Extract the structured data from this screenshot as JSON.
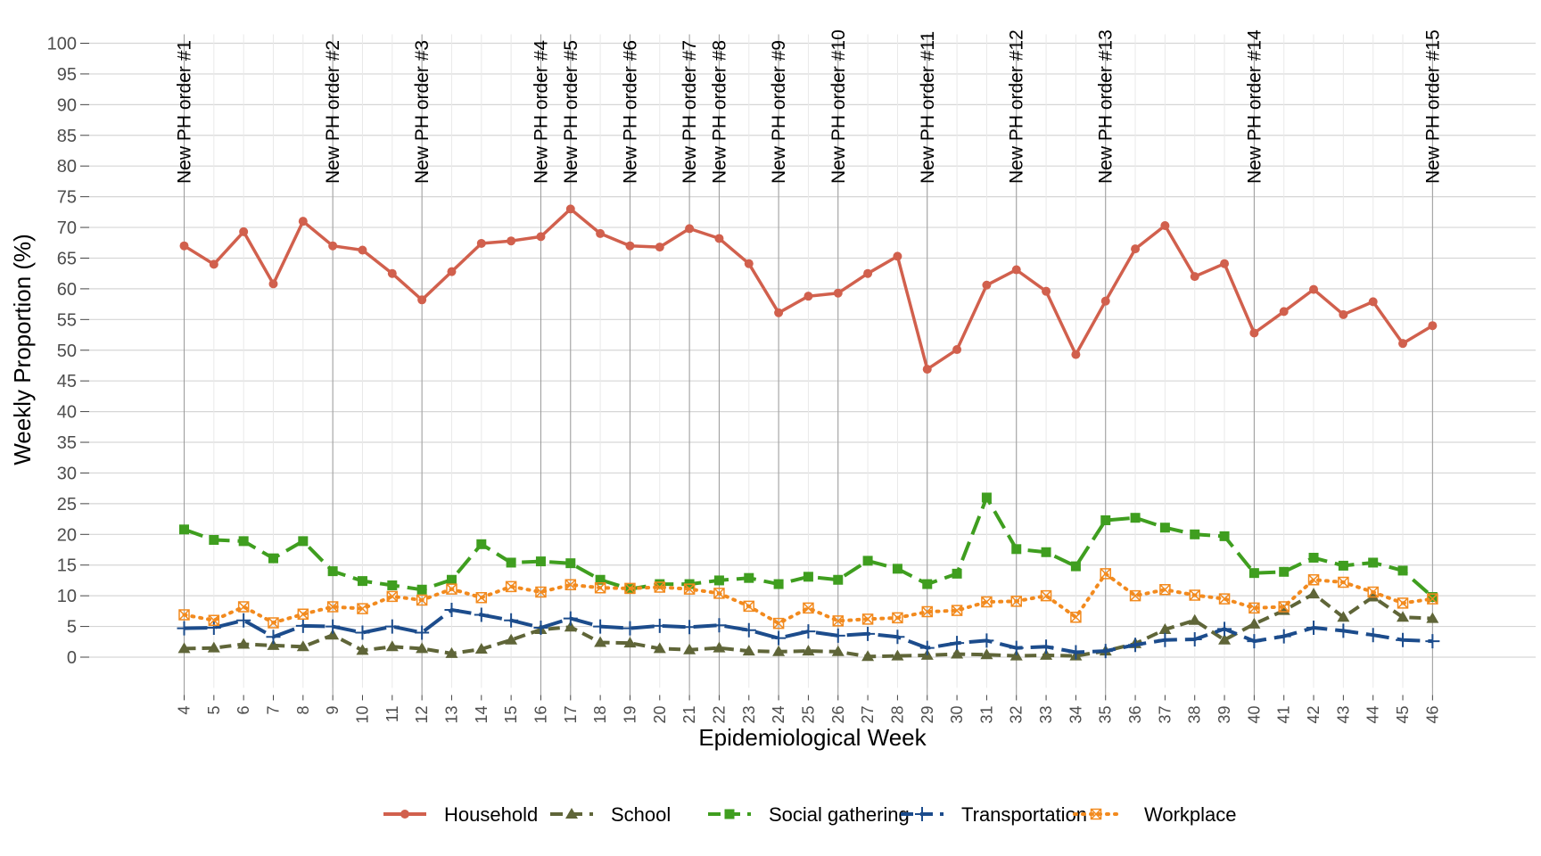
{
  "chart_data": {
    "type": "line",
    "xlabel": "Epidemiological Week",
    "ylabel": "Weekly Proportion (%)",
    "ylim": [
      -5,
      100
    ],
    "yticks": [
      0,
      5,
      10,
      15,
      20,
      25,
      30,
      35,
      40,
      45,
      50,
      55,
      60,
      65,
      70,
      75,
      80,
      85,
      90,
      95,
      100
    ],
    "grid": true,
    "legend_position": "bottom",
    "x": [
      4,
      5,
      6,
      7,
      8,
      9,
      10,
      11,
      12,
      13,
      14,
      15,
      16,
      17,
      18,
      19,
      20,
      21,
      22,
      23,
      24,
      25,
      26,
      27,
      28,
      29,
      30,
      31,
      32,
      33,
      34,
      35,
      36,
      37,
      38,
      39,
      40,
      41,
      42,
      43,
      44,
      45,
      46
    ],
    "annotations": [
      {
        "week": 4,
        "label": "New PH order #1"
      },
      {
        "week": 9,
        "label": "New PH order #2"
      },
      {
        "week": 12,
        "label": "New PH order #3"
      },
      {
        "week": 16,
        "label": "New PH order #4"
      },
      {
        "week": 17,
        "label": "New PH order #5"
      },
      {
        "week": 19,
        "label": "New PH order #6"
      },
      {
        "week": 21,
        "label": "New PH order #7"
      },
      {
        "week": 22,
        "label": "New PH order #8"
      },
      {
        "week": 24,
        "label": "New PH order #9"
      },
      {
        "week": 26,
        "label": "New PH order #10"
      },
      {
        "week": 29,
        "label": "New PH order #11"
      },
      {
        "week": 32,
        "label": "New PH order #12"
      },
      {
        "week": 35,
        "label": "New PH order #13"
      },
      {
        "week": 40,
        "label": "New PH order #14"
      },
      {
        "week": 46,
        "label": "New PH order #15"
      }
    ],
    "series": [
      {
        "name": "Household",
        "color": "#D1604D",
        "dash": "",
        "marker": "circle",
        "values": [
          67,
          64,
          69.3,
          60.8,
          71,
          67,
          66.3,
          62.5,
          58.2,
          62.8,
          67.4,
          67.8,
          68.5,
          73,
          69,
          67,
          66.8,
          69.8,
          68.2,
          64.1,
          56.1,
          58.8,
          59.3,
          62.5,
          65.3,
          46.9,
          50.1,
          60.6,
          63.1,
          59.6,
          49.3,
          58,
          66.5,
          70.3,
          62,
          64.1,
          52.8,
          56.3,
          59.9,
          55.8,
          57.9,
          51.1,
          54
        ]
      },
      {
        "name": "School",
        "color": "#5F6538",
        "dash": "13,7",
        "marker": "triangle",
        "values": [
          1.4,
          1.5,
          2.1,
          1.9,
          1.7,
          3.6,
          1.1,
          1.7,
          1.4,
          0.6,
          1.3,
          2.8,
          4.5,
          4.9,
          2.4,
          2.3,
          1.4,
          1.2,
          1.5,
          1.0,
          0.9,
          1.0,
          0.9,
          0.1,
          0.2,
          0.3,
          0.5,
          0.4,
          0.2,
          0.3,
          0.2,
          1.0,
          2.2,
          4.5,
          6.0,
          2.8,
          5.4,
          7.6,
          10.3,
          6.5,
          9.8,
          6.5,
          6.3
        ]
      },
      {
        "name": "Social gathering",
        "color": "#3F9E1F",
        "dash": "22,9",
        "marker": "square",
        "values": [
          20.8,
          19.1,
          18.9,
          16.1,
          18.9,
          14,
          12.4,
          11.7,
          11,
          12.6,
          18.4,
          15.4,
          15.6,
          15.3,
          12.6,
          11.1,
          11.9,
          11.9,
          12.5,
          12.9,
          11.9,
          13.1,
          12.6,
          15.7,
          14.4,
          11.9,
          13.6,
          26,
          17.6,
          17.1,
          14.8,
          22.3,
          22.7,
          21.1,
          20,
          19.7,
          13.7,
          13.9,
          16.2,
          14.9,
          15.4,
          14.1,
          9.8
        ]
      },
      {
        "name": "Transportation",
        "color": "#1C4C8C",
        "dash": "26,9",
        "marker": "plus",
        "values": [
          4.7,
          4.8,
          6.0,
          3.3,
          5.1,
          5.0,
          4.0,
          5.0,
          4.0,
          7.7,
          6.9,
          6.0,
          4.8,
          6.3,
          5.0,
          4.7,
          5.1,
          4.9,
          5.2,
          4.4,
          3.1,
          4.2,
          3.5,
          3.8,
          3.3,
          1.5,
          2.3,
          2.7,
          1.5,
          1.7,
          0.8,
          1.0,
          2.0,
          2.8,
          2.9,
          4.6,
          2.6,
          3.4,
          4.8,
          4.3,
          3.6,
          2.8,
          2.6
        ]
      },
      {
        "name": "Workplace",
        "color": "#F28A1E",
        "dash": "2,7",
        "marker": "boxx",
        "values": [
          6.9,
          6,
          8.2,
          5.6,
          7,
          8.2,
          7.9,
          9.9,
          9.3,
          11.1,
          9.7,
          11.5,
          10.6,
          11.8,
          11.3,
          11.2,
          11.4,
          11.1,
          10.4,
          8.3,
          5.5,
          8,
          5.9,
          6.2,
          6.4,
          7.4,
          7.6,
          9,
          9.1,
          10,
          6.5,
          13.6,
          10,
          11,
          10.1,
          9.5,
          8,
          8.2,
          12.6,
          12.2,
          10.6,
          8.8,
          9.5
        ]
      }
    ]
  }
}
